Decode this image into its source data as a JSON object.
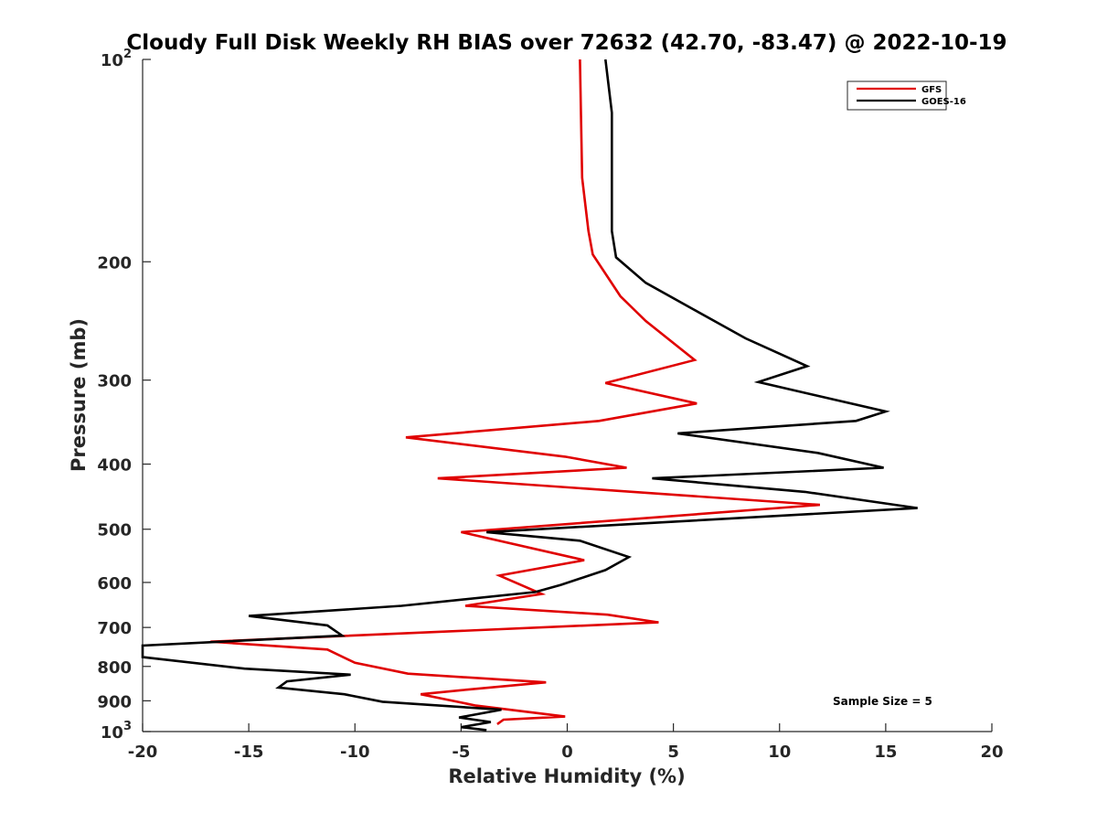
{
  "chart_data": {
    "type": "line",
    "title": "Cloudy Full Disk Weekly RH BIAS over 72632 (42.70, -83.47) @ 2022-10-19",
    "xlabel": "Relative Humidity (%)",
    "ylabel": "Pressure (mb)",
    "xlim": [
      -20,
      20
    ],
    "ylim": [
      100,
      1000
    ],
    "y_scale": "log",
    "y_reversed": true,
    "grid": false,
    "legend_position": "top-right",
    "x_ticks": [
      {
        "value": -20,
        "label": "-20"
      },
      {
        "value": -15,
        "label": "-15"
      },
      {
        "value": -10,
        "label": "-10"
      },
      {
        "value": -5,
        "label": "-5"
      },
      {
        "value": 0,
        "label": "0"
      },
      {
        "value": 5,
        "label": "5"
      },
      {
        "value": 10,
        "label": "10"
      },
      {
        "value": 15,
        "label": "15"
      },
      {
        "value": 20,
        "label": "20"
      }
    ],
    "y_ticks": [
      {
        "value": 100,
        "base": "10",
        "exp": "2"
      },
      {
        "value": 200,
        "base": "200",
        "exp": ""
      },
      {
        "value": 300,
        "base": "300",
        "exp": ""
      },
      {
        "value": 400,
        "base": "400",
        "exp": ""
      },
      {
        "value": 500,
        "base": "500",
        "exp": ""
      },
      {
        "value": 600,
        "base": "600",
        "exp": ""
      },
      {
        "value": 700,
        "base": "700",
        "exp": ""
      },
      {
        "value": 800,
        "base": "800",
        "exp": ""
      },
      {
        "value": 900,
        "base": "900",
        "exp": ""
      },
      {
        "value": 1000,
        "base": "10",
        "exp": "3"
      }
    ],
    "annotation": "Sample Size = 5",
    "series": [
      {
        "name": "GFS",
        "color": "#e00000",
        "points": [
          [
            0.6,
            100
          ],
          [
            0.7,
            150
          ],
          [
            1.0,
            180
          ],
          [
            1.2,
            195
          ],
          [
            2.5,
            225
          ],
          [
            3.7,
            245
          ],
          [
            6.0,
            280
          ],
          [
            1.8,
            303
          ],
          [
            6.1,
            325
          ],
          [
            1.5,
            345
          ],
          [
            -7.6,
            365
          ],
          [
            -0.1,
            390
          ],
          [
            2.8,
            405
          ],
          [
            -6.1,
            420
          ],
          [
            11.9,
            460
          ],
          [
            -5.0,
            505
          ],
          [
            0.8,
            556
          ],
          [
            -3.2,
            586
          ],
          [
            -1.2,
            624
          ],
          [
            -4.8,
            650
          ],
          [
            1.9,
            670
          ],
          [
            4.3,
            688
          ],
          [
            -16.8,
            735
          ],
          [
            -11.3,
            755
          ],
          [
            -10.0,
            790
          ],
          [
            -7.5,
            820
          ],
          [
            -1.0,
            845
          ],
          [
            -5.0,
            868
          ],
          [
            -6.9,
            880
          ],
          [
            -4.3,
            915
          ],
          [
            -0.1,
            950
          ],
          [
            -3.0,
            960
          ],
          [
            -3.3,
            975
          ]
        ]
      },
      {
        "name": "GOES-16",
        "color": "#000000",
        "points": [
          [
            1.8,
            100
          ],
          [
            2.1,
            120
          ],
          [
            2.1,
            180
          ],
          [
            2.3,
            197
          ],
          [
            3.7,
            215
          ],
          [
            5.9,
            235
          ],
          [
            8.4,
            260
          ],
          [
            11.3,
            286
          ],
          [
            9.0,
            302
          ],
          [
            15.0,
            334
          ],
          [
            13.6,
            345
          ],
          [
            5.2,
            360
          ],
          [
            11.8,
            385
          ],
          [
            14.9,
            405
          ],
          [
            4.0,
            420
          ],
          [
            11.2,
            440
          ],
          [
            16.5,
            465
          ],
          [
            -3.8,
            505
          ],
          [
            0.6,
            520
          ],
          [
            2.9,
            550
          ],
          [
            1.8,
            575
          ],
          [
            -0.3,
            605
          ],
          [
            -1.5,
            620
          ],
          [
            -7.8,
            650
          ],
          [
            -15.0,
            673
          ],
          [
            -11.3,
            695
          ],
          [
            -10.6,
            720
          ],
          [
            -20.0,
            745
          ],
          [
            -20.0,
            775
          ],
          [
            -15.2,
            806
          ],
          [
            -10.2,
            823
          ],
          [
            -13.2,
            842
          ],
          [
            -13.6,
            860
          ],
          [
            -10.5,
            880
          ],
          [
            -8.7,
            903
          ],
          [
            -3.1,
            928
          ],
          [
            -5.1,
            953
          ],
          [
            -3.6,
            968
          ],
          [
            -5.0,
            985
          ],
          [
            -3.8,
            995
          ]
        ]
      }
    ]
  }
}
